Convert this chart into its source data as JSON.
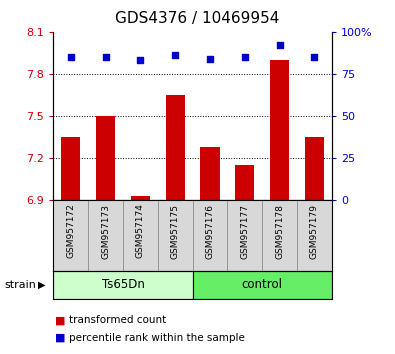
{
  "title": "GDS4376 / 10469954",
  "samples": [
    "GSM957172",
    "GSM957173",
    "GSM957174",
    "GSM957175",
    "GSM957176",
    "GSM957177",
    "GSM957178",
    "GSM957179"
  ],
  "transformed_counts": [
    7.35,
    7.5,
    6.93,
    7.65,
    7.28,
    7.15,
    7.9,
    7.35
  ],
  "percentile_ranks": [
    85,
    85,
    83,
    86,
    84,
    85,
    92,
    85
  ],
  "bar_bottom": 6.9,
  "ylim_left": [
    6.9,
    8.1
  ],
  "ylim_right": [
    0,
    100
  ],
  "yticks_left": [
    6.9,
    7.2,
    7.5,
    7.8,
    8.1
  ],
  "yticks_right": [
    0,
    25,
    50,
    75,
    100
  ],
  "bar_color": "#cc0000",
  "dot_color": "#0000cc",
  "group1_label": "Ts65Dn",
  "group2_label": "control",
  "group1_color": "#ccffcc",
  "group2_color": "#66ee66",
  "strain_label": "strain",
  "legend_bar_label": "transformed count",
  "legend_dot_label": "percentile rank within the sample",
  "title_fontsize": 11,
  "tick_fontsize": 8,
  "sample_fontsize": 6.5,
  "legend_fontsize": 7.5,
  "strain_fontsize": 8,
  "group_fontsize": 8.5
}
